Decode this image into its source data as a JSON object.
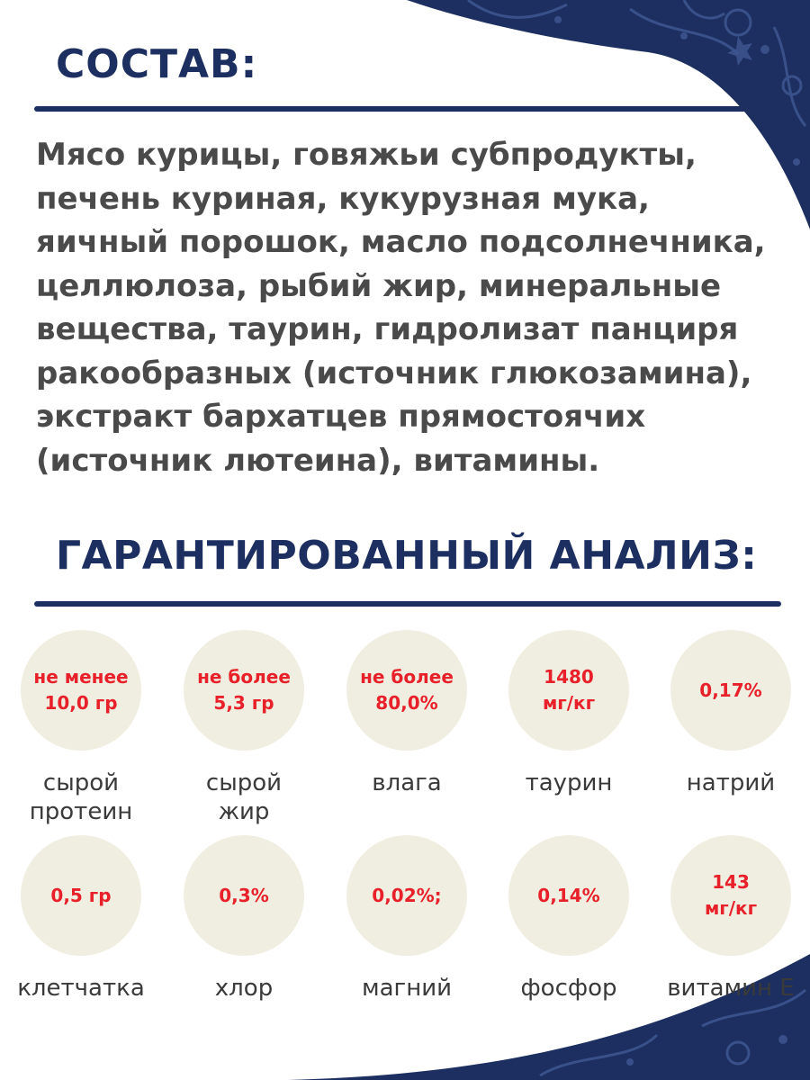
{
  "composition": {
    "title": "СОСТАВ:",
    "text": "Мясо курицы, говяжьи субпродукты, печень куриная, кукурузная мука, яичный порошок, масло подсолнечника, целлюлоза, рыбий жир, минеральные вещества, таурин, гидролизат панциря ракообразных (источник глюкозамина), экстракт бархатцев прямостоячих (источник лютеина), витамины."
  },
  "analysis": {
    "title": "ГАРАНТИРОВАННЫЙ АНАЛИЗ:",
    "items": [
      {
        "value": "не менее\n10,0 гр",
        "label": "сырой\nпротеин"
      },
      {
        "value": "не более\n5,3 гр",
        "label": "сырой\nжир"
      },
      {
        "value": "не более\n80,0%",
        "label": "влага"
      },
      {
        "value": "1480\nмг/кг",
        "label": "таурин"
      },
      {
        "value": "0,17%",
        "label": "натрий"
      },
      {
        "value": "0,5 гр",
        "label": "клетчатка"
      },
      {
        "value": "0,3%",
        "label": "хлор"
      },
      {
        "value": "0,02%;",
        "label": "магний"
      },
      {
        "value": "0,14%",
        "label": "фосфор"
      },
      {
        "value": "143\nмг/кг",
        "label": "витамин Е"
      }
    ]
  },
  "colors": {
    "navy": "#1c2f60",
    "value_red": "#e8202a",
    "circle_beige": "#efeee0",
    "body_text": "#4a4a4a"
  }
}
